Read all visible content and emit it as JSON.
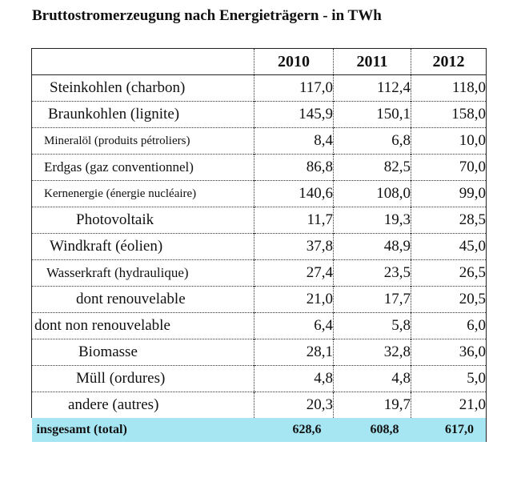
{
  "title": "Bruttostromerzeugung nach Energieträgern - in TWh",
  "table": {
    "years": [
      "2010",
      "2011",
      "2012"
    ],
    "rows": [
      {
        "label": "Steinkohlen (charbon)",
        "values": [
          "117,0",
          "112,4",
          "118,0"
        ]
      },
      {
        "label": "Braunkohlen (lignite)",
        "values": [
          "145,9",
          "150,1",
          "158,0"
        ]
      },
      {
        "label": "Mineralöl (produits pétroliers)",
        "values": [
          "8,4",
          "6,8",
          "10,0"
        ]
      },
      {
        "label": "Erdgas (gaz conventionnel)",
        "values": [
          "86,8",
          "82,5",
          "70,0"
        ]
      },
      {
        "label": "Kernenergie (énergie nucléaire)",
        "values": [
          "140,6",
          "108,0",
          "99,0"
        ]
      },
      {
        "label": "Photovoltaik",
        "values": [
          "11,7",
          "19,3",
          "28,5"
        ]
      },
      {
        "label": "Windkraft (éolien)",
        "values": [
          "37,8",
          "48,9",
          "45,0"
        ]
      },
      {
        "label": "Wasserkraft (hydraulique)",
        "values": [
          "27,4",
          "23,5",
          "26,5"
        ]
      },
      {
        "label": "dont renouvelable",
        "values": [
          "21,0",
          "17,7",
          "20,5"
        ]
      },
      {
        "label": "dont non renouvelable",
        "values": [
          "6,4",
          "5,8",
          "6,0"
        ]
      },
      {
        "label": "Biomasse",
        "values": [
          "28,1",
          "32,8",
          "36,0"
        ]
      },
      {
        "label": "Müll (ordures)",
        "values": [
          "4,8",
          "4,8",
          "5,0"
        ]
      },
      {
        "label": "andere (autres)",
        "values": [
          "20,3",
          "19,7",
          "21,0"
        ]
      }
    ],
    "total": {
      "label": "insgesamt (total)",
      "values": [
        "628,6",
        "608,8",
        "617,0"
      ]
    }
  }
}
